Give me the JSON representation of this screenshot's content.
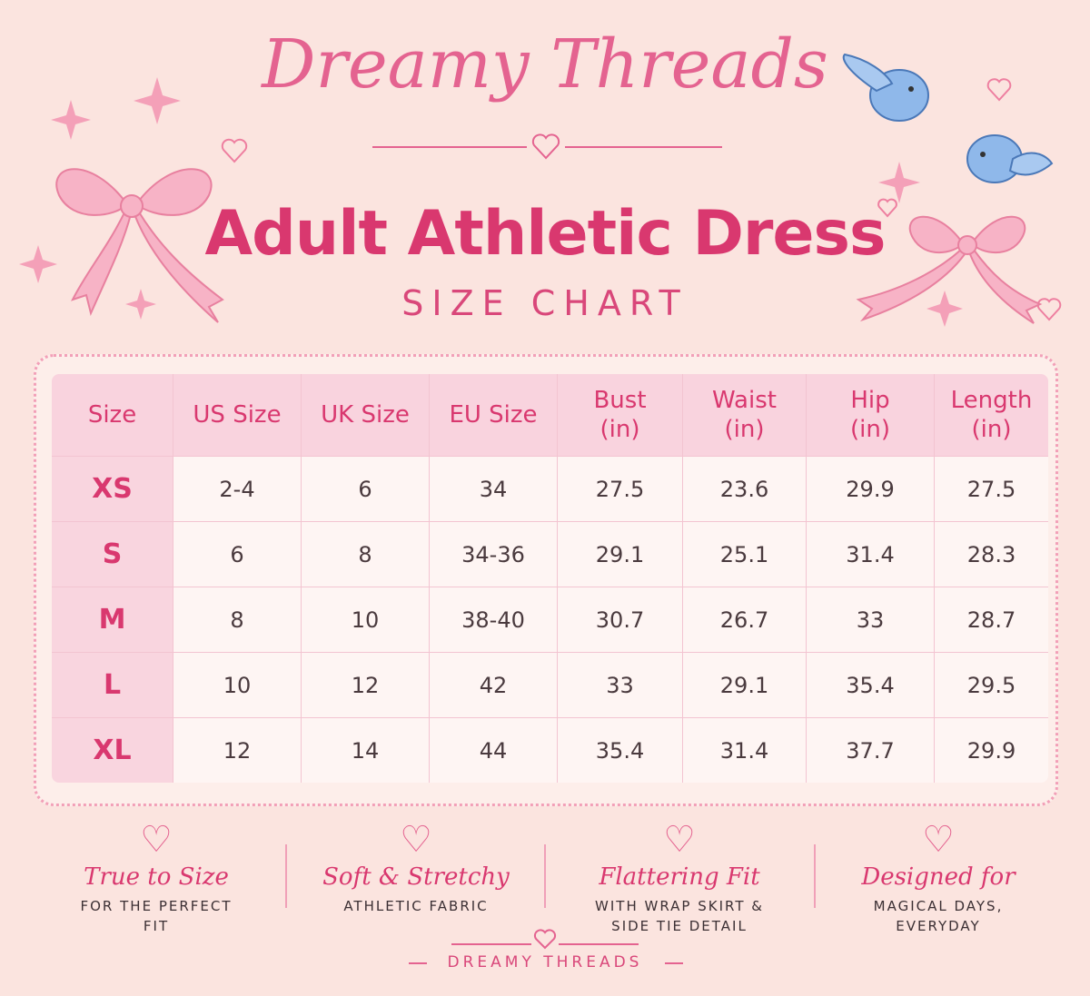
{
  "header": {
    "brand": "Dreamy Threads",
    "title": "Adult Athletic Dress",
    "subtitle": "SIZE CHART"
  },
  "table": {
    "columns": [
      {
        "name": "Size"
      },
      {
        "name": "US Size"
      },
      {
        "name": "UK Size"
      },
      {
        "name": "EU Size"
      },
      {
        "name": "Bust",
        "unit": "(in)"
      },
      {
        "name": "Waist",
        "unit": "(in)"
      },
      {
        "name": "Hip",
        "unit": "(in)"
      },
      {
        "name": "Length",
        "unit": "(in)"
      }
    ],
    "rows": [
      [
        "XS",
        "2-4",
        "6",
        "34",
        "27.5",
        "23.6",
        "29.9",
        "27.5"
      ],
      [
        "S",
        "6",
        "8",
        "34-36",
        "29.1",
        "25.1",
        "31.4",
        "28.3"
      ],
      [
        "M",
        "8",
        "10",
        "38-40",
        "30.7",
        "26.7",
        "33",
        "28.7"
      ],
      [
        "L",
        "10",
        "12",
        "42",
        "33",
        "29.1",
        "35.4",
        "29.5"
      ],
      [
        "XL",
        "12",
        "14",
        "44",
        "35.4",
        "31.4",
        "37.7",
        "29.9"
      ]
    ]
  },
  "features": [
    {
      "title": "True to Size",
      "text": "FOR THE PERFECT FIT"
    },
    {
      "title": "Soft & Stretchy",
      "text": "ATHLETIC FABRIC"
    },
    {
      "title": "Flattering Fit",
      "text": "WITH WRAP SKIRT & SIDE TIE DETAIL"
    },
    {
      "title": "Designed for",
      "text": "MAGICAL DAYS, EVERYDAY"
    }
  ],
  "footer": "DREAMY THREADS"
}
